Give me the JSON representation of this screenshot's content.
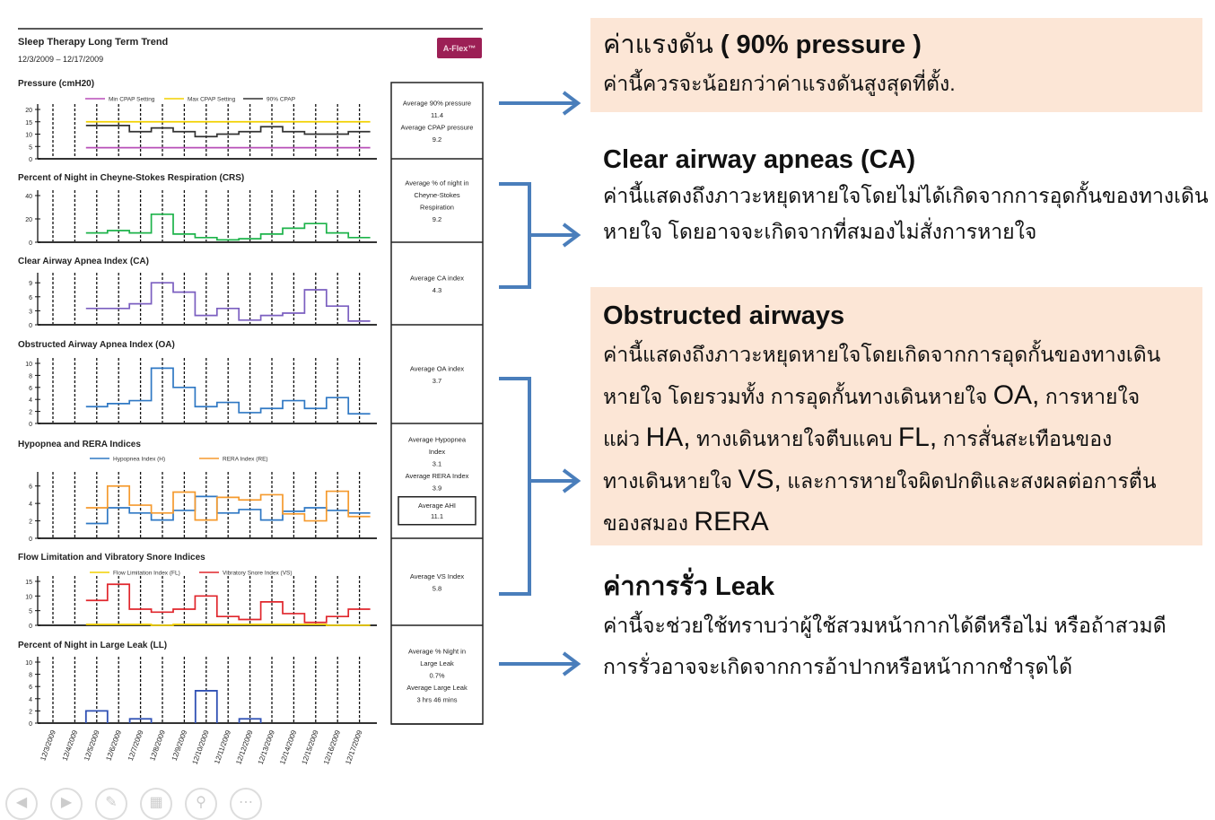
{
  "report": {
    "title": "Sleep Therapy Long Term Trend",
    "date_range": "12/3/2009 – 12/17/2009",
    "badge": "A-Flex™",
    "badge_color": "#9c1f55"
  },
  "summary_boxes": [
    {
      "lines": [
        "Average 90% pressure",
        "11.4",
        "Average CPAP pressure",
        "9.2"
      ]
    },
    {
      "lines": [
        "Average % of night in",
        "Cheyne-Stokes",
        "Respiration",
        "9.2"
      ]
    },
    {
      "lines": [
        "Average CA index",
        "4.3"
      ]
    },
    {
      "lines": [
        "Average OA index",
        "3.7"
      ]
    },
    {
      "lines": [
        "Average Hypopnea",
        "Index",
        "3.1",
        "Average RERA Index",
        "3.9"
      ],
      "ahi": [
        "Average AHI",
        "11.1"
      ]
    },
    {
      "lines": [
        "Average VS Index",
        "5.8"
      ]
    },
    {
      "lines": [
        "Average % Night in",
        "Large Leak",
        "0.7%",
        "Average Large Leak",
        "3 hrs 46 mins"
      ]
    }
  ],
  "chart_data": [
    {
      "type": "line",
      "step": true,
      "title": "Pressure (cmH20)",
      "ylim": [
        0,
        20
      ],
      "yticks": [
        0,
        5,
        10,
        15,
        20
      ],
      "x": [
        "12/5/2009",
        "12/6/2009",
        "12/7/2009",
        "12/8/2009",
        "12/9/2009",
        "12/10/2009",
        "12/11/2009",
        "12/12/2009",
        "12/13/2009",
        "12/14/2009",
        "12/15/2009",
        "12/16/2009",
        "12/17/2009"
      ],
      "series": [
        {
          "name": "Min CPAP Setting",
          "color": "#b84fb8",
          "values": [
            4.5,
            4.5,
            4.5,
            4.5,
            4.5,
            4.5,
            4.5,
            4.5,
            4.5,
            4.5,
            4.5,
            4.5,
            4.5
          ]
        },
        {
          "name": "Max CPAP Setting",
          "color": "#f2d100",
          "values": [
            15,
            15,
            15,
            15,
            15,
            15,
            15,
            15,
            15,
            15,
            15,
            15,
            15
          ]
        },
        {
          "name": "90% CPAP",
          "color": "#333333",
          "values": [
            13.5,
            13.5,
            11,
            12.5,
            11,
            9,
            10,
            11,
            13,
            11,
            10,
            10,
            11
          ]
        }
      ]
    },
    {
      "type": "line",
      "step": true,
      "title": "Percent of Night in Cheyne-Stokes Respiration (CRS)",
      "ylim": [
        0,
        40
      ],
      "yticks": [
        0,
        20,
        40
      ],
      "series": [
        {
          "color": "#1db34a",
          "values": [
            8,
            10,
            8,
            24,
            7,
            4,
            2,
            3,
            7,
            12,
            16,
            8,
            4
          ]
        }
      ]
    },
    {
      "type": "line",
      "step": true,
      "title": "Clear Airway Apnea Index (CA)",
      "ylim": [
        0,
        10
      ],
      "yticks": [
        0,
        3,
        6,
        9
      ],
      "series": [
        {
          "color": "#7b5fc0",
          "values": [
            3.5,
            3.5,
            4.5,
            9,
            7,
            2,
            3.5,
            1,
            2,
            2.5,
            7.5,
            4,
            0.8
          ]
        }
      ]
    },
    {
      "type": "line",
      "step": true,
      "title": "Obstructed Airway Apnea Index (OA)",
      "ylim": [
        0,
        10
      ],
      "yticks": [
        0,
        2,
        4,
        6,
        8,
        10
      ],
      "series": [
        {
          "color": "#2f78c4",
          "values": [
            2.8,
            3.3,
            3.8,
            9.2,
            6,
            2.8,
            3.5,
            1.8,
            2.5,
            3.8,
            2.5,
            4.3,
            1.6
          ]
        }
      ]
    },
    {
      "type": "line",
      "step": true,
      "title": "Hypopnea and RERA Indices",
      "ylim": [
        0,
        7
      ],
      "yticks": [
        0,
        2,
        4,
        6
      ],
      "series": [
        {
          "name": "Hypopnea Index (H)",
          "color": "#2f78c4",
          "values": [
            1.7,
            3.5,
            2.9,
            2.1,
            3.2,
            4.8,
            2.9,
            3.3,
            2.1,
            3.1,
            3.5,
            3.2,
            2.9
          ]
        },
        {
          "name": "RERA Index (RE)",
          "color": "#f59a2e",
          "values": [
            3.5,
            6,
            3.8,
            2.9,
            5.3,
            2.1,
            4.7,
            4.4,
            5,
            2.8,
            2,
            5.4,
            2.5
          ]
        }
      ]
    },
    {
      "type": "line",
      "step": true,
      "title": "Flow Limitation and Vibratory Snore Indices",
      "ylim": [
        0,
        15
      ],
      "yticks": [
        0,
        5,
        10,
        15
      ],
      "series": [
        {
          "name": "Flow Limitation Index (FL)",
          "color": "#f2d100",
          "values": [
            0.3,
            0.3,
            0.3,
            0,
            0.3,
            0.3,
            0.3,
            0.3,
            0.3,
            0.3,
            0.3,
            0,
            0
          ]
        },
        {
          "name": "Vibratory Snore Index (VS)",
          "color": "#e0262c",
          "values": [
            8.5,
            14,
            5.5,
            4.5,
            5.5,
            10,
            3,
            2,
            8,
            4,
            1,
            3,
            5.5
          ]
        }
      ]
    },
    {
      "type": "bar",
      "title": "Percent of Night in Large Leak (LL)",
      "ylim": [
        0,
        10
      ],
      "yticks": [
        0,
        2,
        4,
        6,
        8,
        10
      ],
      "series": [
        {
          "color": "#2f50b4",
          "values": [
            2,
            0,
            0.7,
            0,
            0,
            5.3,
            0,
            0.7,
            0,
            0,
            0,
            0,
            0
          ]
        }
      ]
    }
  ],
  "date_labels": [
    "12/3/2009",
    "12/4/2009",
    "12/5/2009",
    "12/6/2009",
    "12/7/2009",
    "12/8/2009",
    "12/9/2009",
    "12/10/2009",
    "12/11/2009",
    "12/12/2009",
    "12/13/2009",
    "12/14/2009",
    "12/15/2009",
    "12/16/2009",
    "12/17/2009"
  ],
  "notes": {
    "pressure": {
      "heading_thai": "ค่าแรงดัน",
      "heading_en": "( 90% pressure )",
      "body": "ค่านี้ควรจะน้อยกว่าค่าแรงดันสูงสุดที่ตั้ง."
    },
    "ca": {
      "heading": "Clear airway apneas (CA)",
      "body1": "ค่านี้แสดงถึงภาวะหยุดหายใจโดยไม่ได้เกิดจากการอุดกั้นของทางเดิน",
      "body2": "หายใจ โดยอาจจะเกิดจากที่สมองไม่สั่งการหายใจ"
    },
    "obstructed": {
      "heading": "Obstructed airways",
      "l1": "ค่านี้แสดงถึงภาวะหยุดหายใจโดยเกิดจากการอุดกั้นของทางเดิน",
      "l2a": "หายใจ โดยรวมทั้ง การอุดกั้นทางเดินหายใจ ",
      "l2b": "OA,",
      "l2c": " การหายใจ",
      "l3a": "แผ่ว ",
      "l3b": "HA,",
      "l3c": " ทางเดินหายใจตีบแคบ ",
      "l3d": "FL,",
      "l3e": "  การสั่นสะเทือนของ",
      "l4a": "ทางเดินหายใจ ",
      "l4b": "VS,",
      "l4c": " และการหายใจผิดปกติและสงผลต่อการตื่น",
      "l5a": "ของสมอง ",
      "l5b": "RERA"
    },
    "leak": {
      "heading_thai": "ค่าการรั่ว",
      "heading_en": "Leak",
      "body1": "ค่านี้จะช่วยใช้ทราบว่าผู้ใช้สวมหน้ากากได้ดีหรือไม่ หรือถ้าสวมดี",
      "body2": "การรั่วอาจจะเกิดจากการอ้าปากหรือหน้ากากชำรุดได้"
    },
    "box_color": "#fce6d6",
    "arrow_color": "#4a7ebb"
  },
  "slideshow_controls": [
    "previous-icon",
    "next-icon",
    "pen-icon",
    "slides-icon",
    "zoom-icon",
    "more-icon"
  ]
}
